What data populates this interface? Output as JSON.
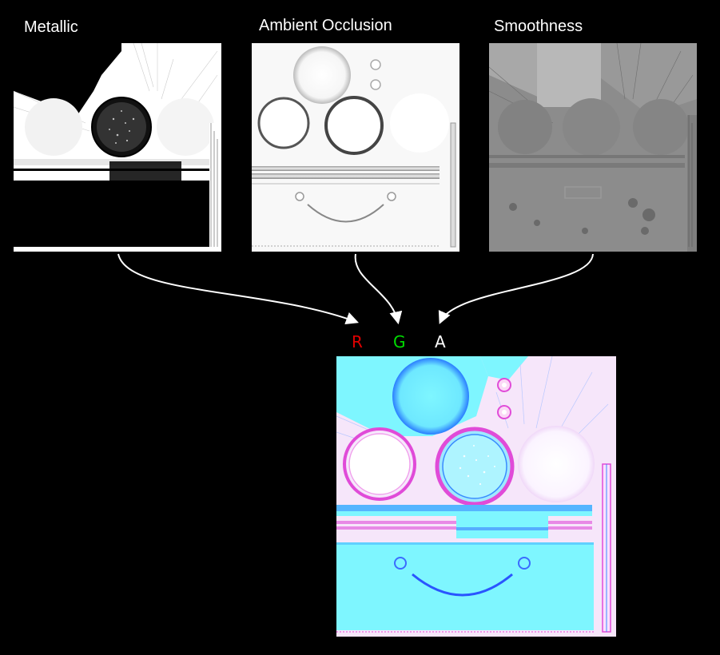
{
  "inputs": [
    {
      "label": "Metallic"
    },
    {
      "label": "Ambient Occlusion"
    },
    {
      "label": "Smoothness"
    }
  ],
  "channels": [
    {
      "label": "R",
      "color": "#e00000"
    },
    {
      "label": "G",
      "color": "#00dd00"
    },
    {
      "label": "A",
      "color": "#ffffff"
    }
  ],
  "colors": {
    "background": "#000000",
    "arrow": "#ffffff",
    "packed_cyan": "#7ef6ff",
    "packed_magenta": "#e04bd8"
  }
}
